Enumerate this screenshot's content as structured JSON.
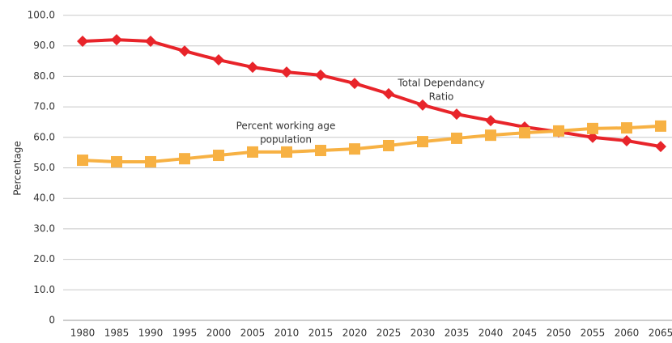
{
  "chart_data": {
    "type": "line",
    "y_label": "Percentage",
    "categories": [
      "1980",
      "1985",
      "1990",
      "1995",
      "2000",
      "2005",
      "2010",
      "2015",
      "2020",
      "2025",
      "2030",
      "2035",
      "2040",
      "2045",
      "2050",
      "2055",
      "2060",
      "2065"
    ],
    "series": [
      {
        "color": "#e8242a",
        "marker": "diamond",
        "values": [
          91.5,
          92.0,
          91.5,
          88.3,
          85.4,
          83.0,
          81.4,
          80.4,
          77.7,
          74.3,
          70.6,
          67.6,
          65.5,
          63.4,
          61.8,
          60.0,
          58.9,
          57.0
        ]
      },
      {
        "color": "#f7b143",
        "marker": "square",
        "values": [
          52.5,
          52.0,
          52.0,
          53.0,
          54.1,
          55.2,
          55.2,
          55.7,
          56.2,
          57.3,
          58.6,
          59.7,
          60.7,
          61.5,
          62.1,
          62.9,
          63.1,
          63.7
        ]
      }
    ],
    "annotations": [
      {
        "lines": [
          "Total Dependancy",
          "Ratio"
        ]
      },
      {
        "lines": [
          "Percent working age",
          "population"
        ]
      }
    ],
    "ylim": [
      0,
      100
    ],
    "yticks": [
      0,
      {
        "value": 10,
        "label": "10.0"
      },
      {
        "value": 20,
        "label": "20.0"
      },
      {
        "value": 30,
        "label": "30.0"
      },
      {
        "value": 40,
        "label": "40.0"
      },
      {
        "value": 50,
        "label": "50.0"
      },
      {
        "value": 60,
        "label": "60.0"
      },
      {
        "value": 70,
        "label": "70.0"
      },
      {
        "value": 80,
        "label": "80.0"
      },
      {
        "value": 90,
        "label": "90.0"
      },
      {
        "value": 100,
        "label": "100.0"
      }
    ],
    "grid": true
  }
}
